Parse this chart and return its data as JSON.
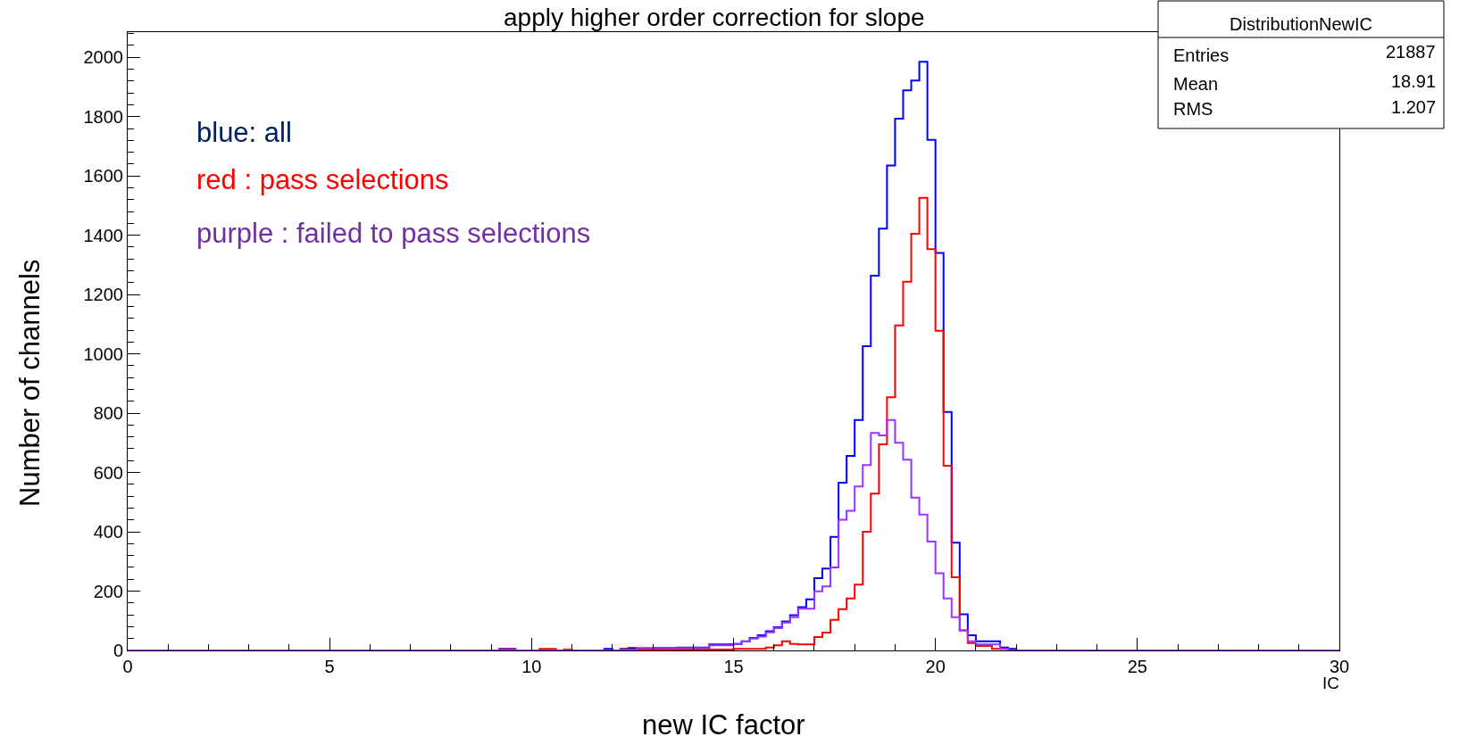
{
  "chart_data": {
    "type": "histogram",
    "title": "apply higher order correction for slope",
    "xlabel": "new IC factor",
    "ylabel": "Number of channels",
    "bins": [
      0,
      0.2,
      0.4,
      0.6,
      0.8,
      1,
      1.2,
      1.4,
      1.6,
      1.8,
      2,
      2.2,
      2.4,
      2.6,
      2.8,
      3,
      3.2,
      3.4,
      3.6,
      3.8,
      4,
      4.2,
      4.4,
      4.6,
      4.8,
      5,
      5.2,
      5.4,
      5.6,
      5.8,
      6,
      6.2,
      6.4,
      6.6,
      6.8,
      7,
      7.2,
      7.4,
      7.6,
      7.8,
      8,
      8.2,
      8.4,
      8.6,
      8.8,
      9,
      9.2,
      9.4,
      9.6,
      9.8,
      10,
      10.2,
      10.4,
      10.6,
      10.8,
      11,
      11.2,
      11.4,
      11.6,
      11.8,
      12,
      12.2,
      12.4,
      12.6,
      12.8,
      13,
      13.2,
      13.4,
      13.6,
      13.8,
      14,
      14.2,
      14.4,
      14.6,
      14.8,
      15,
      15.2,
      15.4,
      15.6,
      15.8,
      16,
      16.2,
      16.4,
      16.6,
      16.8,
      17,
      17.2,
      17.4,
      17.6,
      17.8,
      18,
      18.2,
      18.4,
      18.6,
      18.8,
      19,
      19.2,
      19.4,
      19.6,
      19.8,
      20,
      20.2,
      20.4,
      20.6,
      20.8,
      21,
      21.2,
      21.4,
      21.6,
      21.8,
      22,
      22.2,
      22.4,
      22.6,
      22.8,
      23,
      23.2,
      23.4,
      23.6,
      23.8,
      24,
      24.2,
      24.4,
      24.6,
      24.8,
      25,
      25.2,
      25.4,
      25.6,
      25.8,
      26,
      26.2,
      26.4,
      26.6,
      26.8,
      27,
      27.2,
      27.4,
      27.6,
      27.8,
      28,
      28.2,
      28.4,
      28.6,
      28.8,
      29,
      29.2,
      29.4,
      29.6,
      29.8,
      30
    ],
    "series": [
      {
        "color": "#0000ff",
        "values": [
          0,
          0,
          0,
          0,
          0,
          0,
          0,
          0,
          0,
          0,
          0,
          0,
          0,
          0,
          0,
          0,
          0,
          0,
          0,
          0,
          0,
          0,
          0,
          0,
          0,
          0,
          0,
          0,
          0,
          0,
          0,
          0,
          0,
          0,
          0,
          0,
          0,
          0,
          0,
          0,
          0,
          0,
          0,
          0,
          0,
          0,
          5,
          5,
          0,
          0,
          0,
          3,
          3,
          0,
          0,
          0,
          0,
          0,
          0,
          5,
          0,
          5,
          8,
          5,
          5,
          8,
          8,
          8,
          10,
          10,
          10,
          10,
          20,
          20,
          20,
          22,
          31,
          42,
          51,
          65,
          78,
          98,
          119,
          146,
          172,
          244,
          276,
          383,
          566,
          656,
          777,
          1026,
          1264,
          1422,
          1635,
          1793,
          1889,
          1922,
          1985,
          1722,
          1340,
          804,
          363,
          122,
          51,
          31,
          31,
          31,
          10,
          5,
          0,
          0,
          0,
          0,
          0,
          0,
          0,
          0,
          0,
          0,
          0,
          0,
          0,
          0,
          0,
          0,
          0,
          0,
          0,
          0,
          0,
          0,
          0,
          0,
          0,
          0,
          0,
          0,
          0,
          0,
          0,
          0,
          0,
          0,
          0,
          0,
          0,
          0,
          0,
          0
        ]
      },
      {
        "color": "#ff0000",
        "values": [
          0,
          0,
          0,
          0,
          0,
          0,
          0,
          0,
          0,
          0,
          0,
          0,
          0,
          0,
          0,
          0,
          0,
          0,
          0,
          0,
          0,
          0,
          0,
          0,
          0,
          0,
          0,
          0,
          0,
          0,
          0,
          0,
          0,
          0,
          0,
          0,
          0,
          0,
          0,
          0,
          0,
          0,
          0,
          0,
          0,
          0,
          3,
          3,
          0,
          0,
          0,
          5,
          5,
          0,
          3,
          0,
          0,
          0,
          0,
          0,
          0,
          3,
          3,
          3,
          3,
          3,
          3,
          3,
          3,
          3,
          3,
          3,
          3,
          3,
          3,
          5,
          5,
          5,
          5,
          10,
          17,
          31,
          22,
          20,
          20,
          45,
          60,
          103,
          139,
          175,
          222,
          400,
          529,
          695,
          854,
          1096,
          1243,
          1405,
          1526,
          1353,
          1078,
          623,
          247,
          68,
          25,
          15,
          15,
          5,
          5,
          0,
          0,
          0,
          0,
          0,
          0,
          0,
          0,
          0,
          0,
          0,
          0,
          0,
          0,
          0,
          0,
          0,
          0,
          0,
          0,
          0,
          0,
          0,
          0,
          0,
          0,
          0,
          0,
          0,
          0,
          0,
          0,
          0,
          0,
          0,
          0,
          0,
          0,
          0,
          0,
          0
        ]
      },
      {
        "color": "#9933ff",
        "values": [
          0,
          0,
          0,
          0,
          0,
          0,
          0,
          0,
          0,
          0,
          0,
          0,
          0,
          0,
          0,
          0,
          0,
          0,
          0,
          0,
          0,
          0,
          0,
          0,
          0,
          0,
          0,
          0,
          0,
          0,
          0,
          0,
          0,
          0,
          0,
          0,
          0,
          0,
          0,
          0,
          0,
          0,
          0,
          0,
          0,
          0,
          0,
          0,
          0,
          0,
          0,
          0,
          0,
          0,
          0,
          0,
          0,
          0,
          0,
          0,
          0,
          0,
          0,
          8,
          8,
          8,
          8,
          8,
          8,
          8,
          8,
          8,
          17,
          17,
          17,
          22,
          30,
          40,
          47,
          61,
          75,
          94,
          112,
          141,
          141,
          199,
          216,
          280,
          441,
          471,
          553,
          625,
          733,
          725,
          777,
          700,
          643,
          515,
          458,
          367,
          260,
          175,
          112,
          68,
          31,
          20,
          20,
          20,
          5,
          0,
          0,
          0,
          0,
          0,
          0,
          0,
          0,
          0,
          0,
          0,
          0,
          0,
          0,
          0,
          0,
          0,
          0,
          0,
          0,
          0,
          0,
          0,
          0,
          0,
          0,
          0,
          0,
          0,
          0,
          0,
          0,
          0,
          0,
          0,
          0,
          0,
          0,
          0,
          0,
          0
        ]
      }
    ],
    "xlim": [
      0,
      30
    ],
    "xticks": [
      0,
      5,
      10,
      15,
      20,
      25,
      30
    ],
    "ylim": [
      0,
      2085
    ],
    "yticks": [
      0,
      200,
      400,
      600,
      800,
      1000,
      1200,
      1400,
      1600,
      1800,
      2000
    ],
    "annotations": [
      "blue: all",
      "red : pass selections",
      "purple : failed to pass selections",
      "IC",
      "DistributionNewIC",
      "Entries",
      "21887",
      "Mean",
      "18.91",
      "RMS",
      "1.207"
    ]
  }
}
